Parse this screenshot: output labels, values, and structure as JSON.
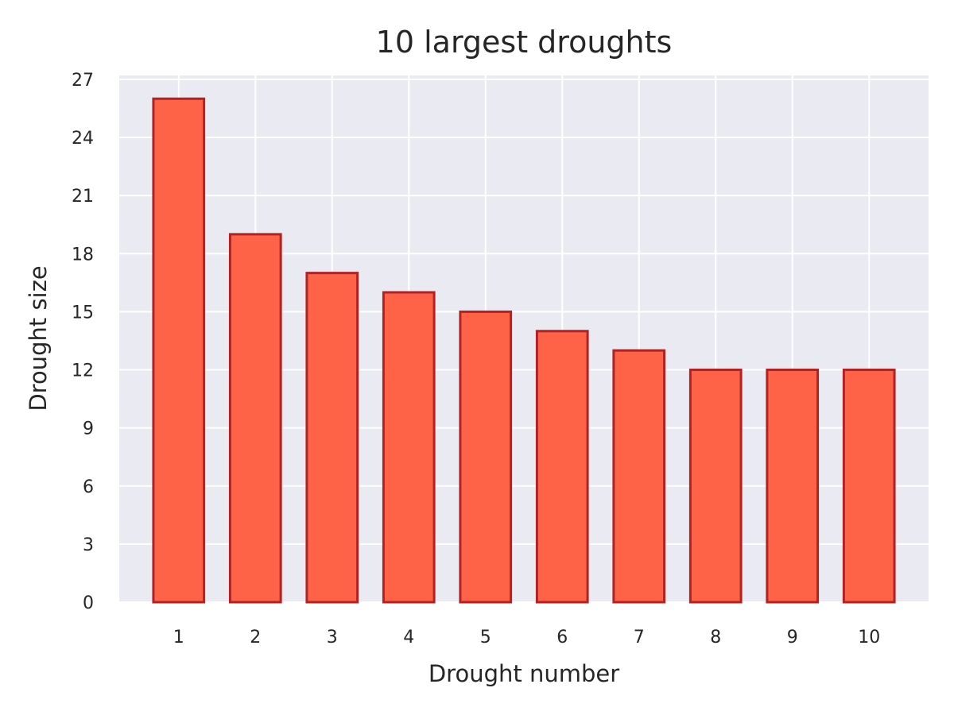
{
  "chart_data": {
    "type": "bar",
    "title": "10 largest droughts",
    "xlabel": "Drought number",
    "ylabel": "Drought size",
    "categories": [
      "1",
      "2",
      "3",
      "4",
      "5",
      "6",
      "7",
      "8",
      "9",
      "10"
    ],
    "values": [
      26,
      19,
      17,
      16,
      15,
      14,
      13,
      12,
      12,
      12
    ],
    "yticks": [
      "0",
      "3",
      "6",
      "9",
      "12",
      "15",
      "18",
      "21",
      "24",
      "27"
    ],
    "ylim": [
      0,
      27.2
    ],
    "grid": true,
    "legend": "none",
    "colors": {
      "bar_fill": "#ff6347",
      "bar_edge": "#b22222",
      "plot_background": "#eaeaf2",
      "grid": "#ffffff",
      "text": "#262626"
    }
  }
}
